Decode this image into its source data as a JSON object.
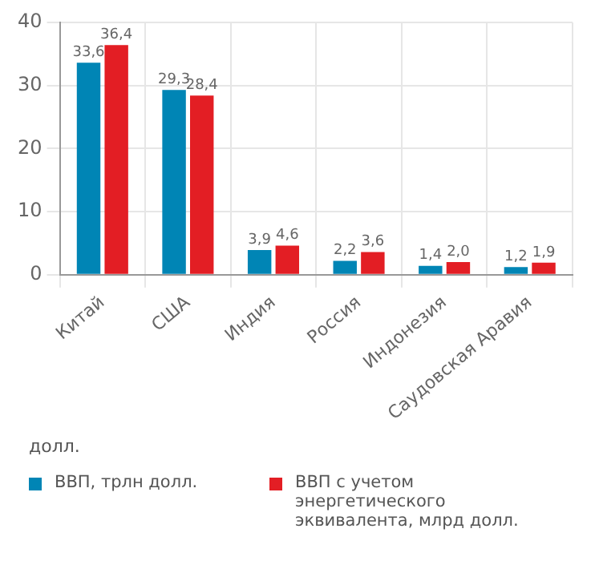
{
  "chart_data": {
    "type": "bar",
    "ylabel": "долл.",
    "categories": [
      "Китай",
      "США",
      "Индия",
      "Россия",
      "Индонезия",
      "Саудовская Аравия"
    ],
    "series": [
      {
        "name": "ВВП, трлн долл.",
        "color": "#0085b5",
        "values": [
          33.6,
          29.3,
          3.9,
          2.2,
          1.4,
          1.2
        ],
        "value_labels": [
          "33,6",
          "29,3",
          "3,9",
          "2,2",
          "1,4",
          "1,2"
        ]
      },
      {
        "name": "ВВП с учетом энергетического эквивалента, млрд долл.",
        "color": "#e31e24",
        "values": [
          36.4,
          28.4,
          4.6,
          3.6,
          2.0,
          1.9
        ],
        "value_labels": [
          "36,4",
          "28,4",
          "4,6",
          "3,6",
          "2,0",
          "1,9"
        ]
      }
    ],
    "ylim": [
      0,
      40
    ],
    "yticks": [
      0,
      10,
      20,
      30,
      40
    ],
    "grid": true,
    "legend": "bottom"
  }
}
